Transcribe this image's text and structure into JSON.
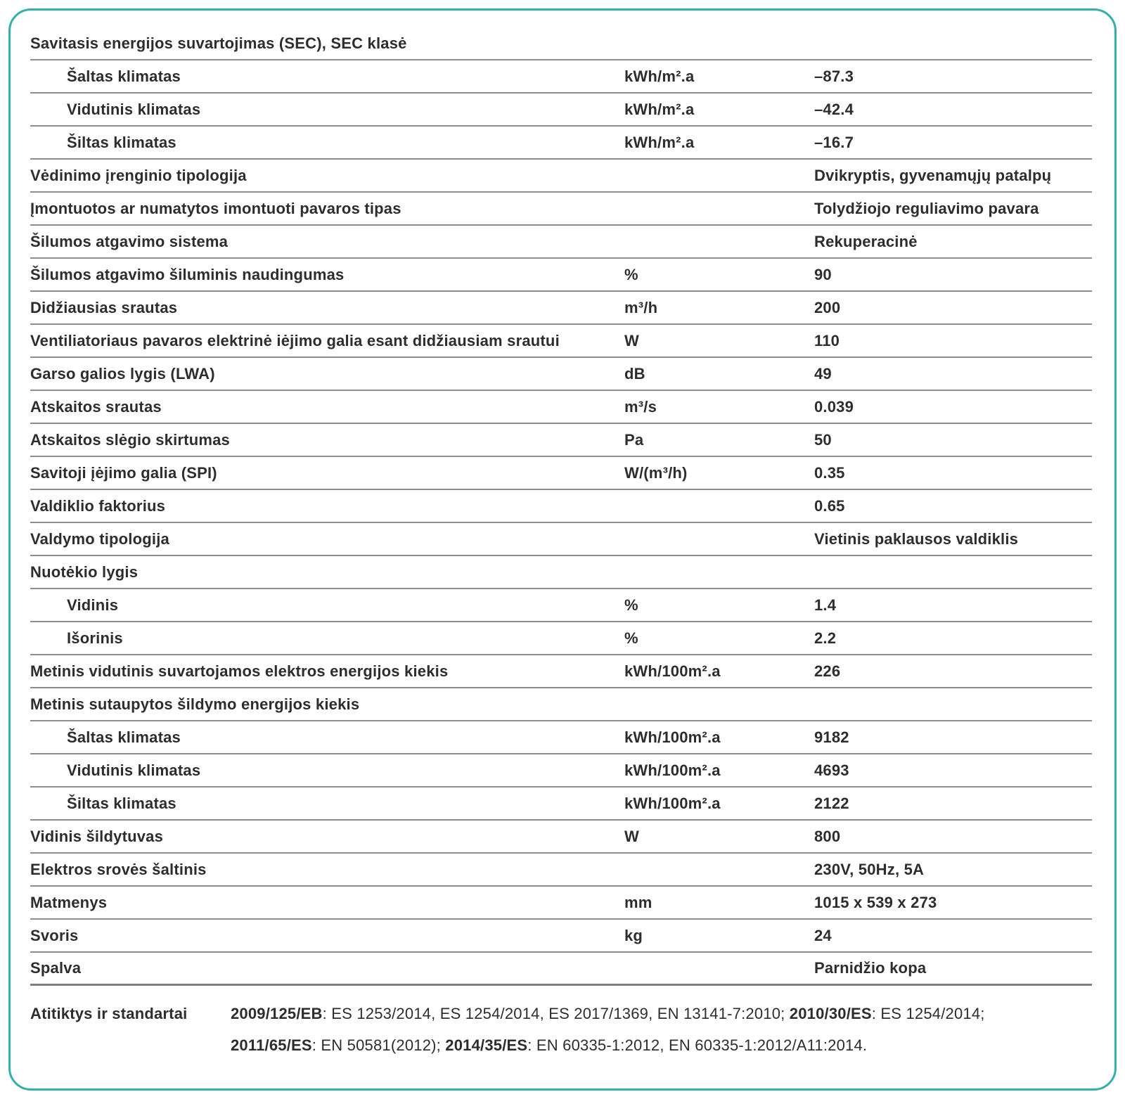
{
  "colors": {
    "accent": "#35b0a8",
    "divider": "#8d8d8d",
    "text": "#2d2d2d"
  },
  "table": {
    "rows": [
      {
        "label": "Savitasis energijos suvartojimas (SEC), SEC klasė",
        "indent": false,
        "unit": "",
        "value": ""
      },
      {
        "label": "Šaltas klimatas",
        "indent": true,
        "unit": "kWh/m².a",
        "value": "–87.3"
      },
      {
        "label": "Vidutinis klimatas",
        "indent": true,
        "unit": "kWh/m².a",
        "value": "–42.4"
      },
      {
        "label": "Šiltas klimatas",
        "indent": true,
        "unit": "kWh/m².a",
        "value": "–16.7"
      },
      {
        "label": "Vėdinimo įrenginio tipologija",
        "indent": false,
        "unit": "",
        "value": "Dvikryptis, gyvenamųjų patalpų"
      },
      {
        "label": "Įmontuotos ar numatytos imontuoti pavaros tipas",
        "indent": false,
        "unit": "",
        "value": "Tolydžiojo reguliavimo pavara"
      },
      {
        "label": "Šilumos atgavimo sistema",
        "indent": false,
        "unit": "",
        "value": "Rekuperacinė"
      },
      {
        "label": "Šilumos atgavimo šiluminis naudingumas",
        "indent": false,
        "unit": "%",
        "value": "90"
      },
      {
        "label": "Didžiausias srautas",
        "indent": false,
        "unit": "m³/h",
        "value": "200"
      },
      {
        "label": "Ventiliatoriaus pavaros elektrinė iėjimo galia esant didžiausiam srautui",
        "indent": false,
        "unit": "W",
        "value": "110"
      },
      {
        "label": "Garso galios lygis (LWA)",
        "indent": false,
        "unit": "dB",
        "value": "49"
      },
      {
        "label": "Atskaitos srautas",
        "indent": false,
        "unit": "m³/s",
        "value": "0.039"
      },
      {
        "label": "Atskaitos slėgio skirtumas",
        "indent": false,
        "unit": "Pa",
        "value": "50"
      },
      {
        "label": "Savitoji įėjimo galia (SPI)",
        "indent": false,
        "unit": "W/(m³/h)",
        "value": "0.35"
      },
      {
        "label": "Valdiklio faktorius",
        "indent": false,
        "unit": "",
        "value": "0.65"
      },
      {
        "label": "Valdymo tipologija",
        "indent": false,
        "unit": "",
        "value": "Vietinis paklausos valdiklis"
      },
      {
        "label": "Nuotėkio lygis",
        "indent": false,
        "unit": "",
        "value": ""
      },
      {
        "label": "Vidinis",
        "indent": true,
        "unit": "%",
        "value": "1.4"
      },
      {
        "label": "Išorinis",
        "indent": true,
        "unit": "%",
        "value": "2.2"
      },
      {
        "label": "Metinis vidutinis suvartojamos elektros energijos kiekis",
        "indent": false,
        "unit": "kWh/100m².a",
        "value": "226"
      },
      {
        "label": "Metinis sutaupytos šildymo energijos kiekis",
        "indent": false,
        "unit": "",
        "value": ""
      },
      {
        "label": "Šaltas klimatas",
        "indent": true,
        "unit": "kWh/100m².a",
        "value": "9182"
      },
      {
        "label": "Vidutinis klimatas",
        "indent": true,
        "unit": "kWh/100m².a",
        "value": "4693"
      },
      {
        "label": "Šiltas klimatas",
        "indent": true,
        "unit": "kWh/100m².a",
        "value": "2122"
      },
      {
        "label": "Vidinis šildytuvas",
        "indent": false,
        "unit": "W",
        "value": "800"
      },
      {
        "label": "Elektros srovės šaltinis",
        "indent": false,
        "unit": "",
        "value": "230V, 50Hz, 5A"
      },
      {
        "label": "Matmenys",
        "indent": false,
        "unit": "mm",
        "value": "1015 x 539 x 273"
      },
      {
        "label": "Svoris",
        "indent": false,
        "unit": "kg",
        "value": "24"
      },
      {
        "label": "Spalva",
        "indent": false,
        "unit": "",
        "value": "Parnidžio kopa"
      }
    ]
  },
  "footer": {
    "label": "Atitiktys ir standartai",
    "lines": [
      [
        {
          "text": "2009/125/EB",
          "bold": true
        },
        {
          "text": ": ES 1253/2014, ES 1254/2014, ES 2017/1369, EN 13141-7:2010; ",
          "bold": false
        },
        {
          "text": "2010/30/ES",
          "bold": true
        },
        {
          "text": ": ES 1254/2014;",
          "bold": false
        }
      ],
      [
        {
          "text": "2011/65/ES",
          "bold": true
        },
        {
          "text": ": EN 50581(2012); ",
          "bold": false
        },
        {
          "text": "2014/35/ES",
          "bold": true
        },
        {
          "text": ": EN 60335-1:2012, EN 60335-1:2012/A11:2014.",
          "bold": false
        }
      ]
    ]
  }
}
